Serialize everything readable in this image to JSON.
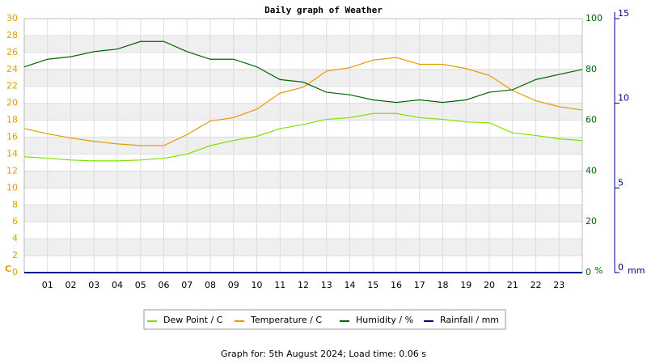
{
  "chart_data": {
    "type": "line",
    "title": "Daily graph of Weather",
    "footer": "Graph for: 5th August 2024; Load time: 0.06 s",
    "y_unit": "C",
    "y2_unit": "%",
    "y3_unit": "mm",
    "x": [
      0,
      1,
      2,
      3,
      4,
      5,
      6,
      7,
      8,
      9,
      10,
      11,
      12,
      13,
      14,
      15,
      16,
      17,
      18,
      19,
      20,
      21,
      22,
      23,
      24
    ],
    "xlim": [
      0,
      24
    ],
    "xticks": [
      {
        "value": 1,
        "label": "01"
      },
      {
        "value": 2,
        "label": "02"
      },
      {
        "value": 3,
        "label": "03"
      },
      {
        "value": 4,
        "label": "04"
      },
      {
        "value": 5,
        "label": "05"
      },
      {
        "value": 6,
        "label": "06"
      },
      {
        "value": 7,
        "label": "07"
      },
      {
        "value": 8,
        "label": "08"
      },
      {
        "value": 9,
        "label": "09"
      },
      10,
      11,
      12,
      13,
      14,
      15,
      16,
      17,
      18,
      19,
      20,
      21,
      22,
      23
    ],
    "ylim": [
      0,
      30
    ],
    "yticks": [
      0,
      2,
      4,
      6,
      8,
      10,
      12,
      14,
      16,
      18,
      20,
      22,
      24,
      26,
      28,
      30
    ],
    "ycolor": "#e69a00",
    "y2lim": [
      0,
      100
    ],
    "y2ticks": [
      0,
      20,
      40,
      60,
      80,
      100
    ],
    "y2color": "#006400",
    "y3lim": [
      0,
      15
    ],
    "y3ticks": [
      0,
      5,
      10,
      15
    ],
    "y3color": "#00008b",
    "grid": true,
    "series": [
      {
        "name": "Dew Point / C",
        "color": "#7ee000",
        "values": [
          13.7,
          13.5,
          13.3,
          13.2,
          13.2,
          13.3,
          13.5,
          14.0,
          15.0,
          15.6,
          16.1,
          17.0,
          17.5,
          18.1,
          18.3,
          18.8,
          18.8,
          18.3,
          18.1,
          17.8,
          17.7,
          16.5,
          16.2,
          15.8,
          15.6
        ]
      },
      {
        "name": "Temperature / C",
        "color": "#e69a00",
        "values": [
          17.0,
          16.4,
          15.9,
          15.5,
          15.2,
          15.0,
          15.0,
          16.3,
          17.9,
          18.3,
          19.3,
          21.2,
          21.9,
          23.8,
          24.2,
          25.1,
          25.4,
          24.6,
          24.6,
          24.1,
          23.3,
          21.5,
          20.3,
          19.6,
          19.2
        ]
      },
      {
        "name": "Humidity / %",
        "color": "#006400",
        "axis": "y2",
        "values": [
          81,
          84,
          85,
          87,
          88,
          91,
          91,
          87,
          84,
          84,
          81,
          76,
          75,
          71,
          70,
          68,
          67,
          68,
          67,
          68,
          71,
          72,
          76,
          78,
          80
        ]
      },
      {
        "name": "Rainfall / mm",
        "color": "#00008b",
        "axis": "y3",
        "values": [
          0,
          0,
          0,
          0,
          0,
          0,
          0,
          0,
          0,
          0,
          0,
          0,
          0,
          0,
          0,
          0,
          0,
          0,
          0,
          0,
          0,
          0,
          0,
          0,
          0
        ]
      }
    ]
  }
}
